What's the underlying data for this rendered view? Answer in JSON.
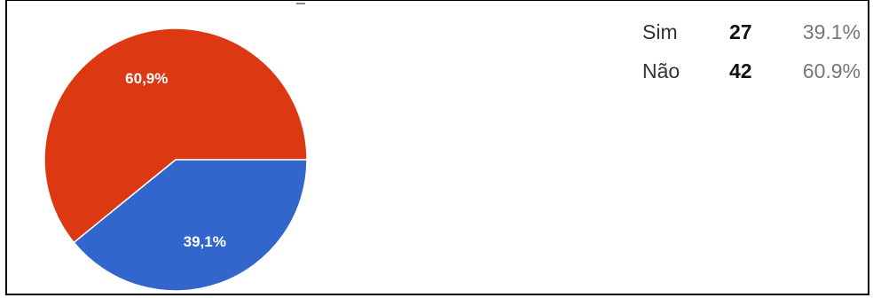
{
  "chart_data": {
    "type": "pie",
    "categories": [
      "Sim",
      "Não"
    ],
    "values": [
      27,
      42
    ],
    "percent_labels": [
      "39.1%",
      "60.9%"
    ],
    "slice_labels": [
      "39,1%",
      "60,9%"
    ],
    "colors": [
      "#3366cc",
      "#dc3912"
    ],
    "legend_placement": "top-right"
  }
}
